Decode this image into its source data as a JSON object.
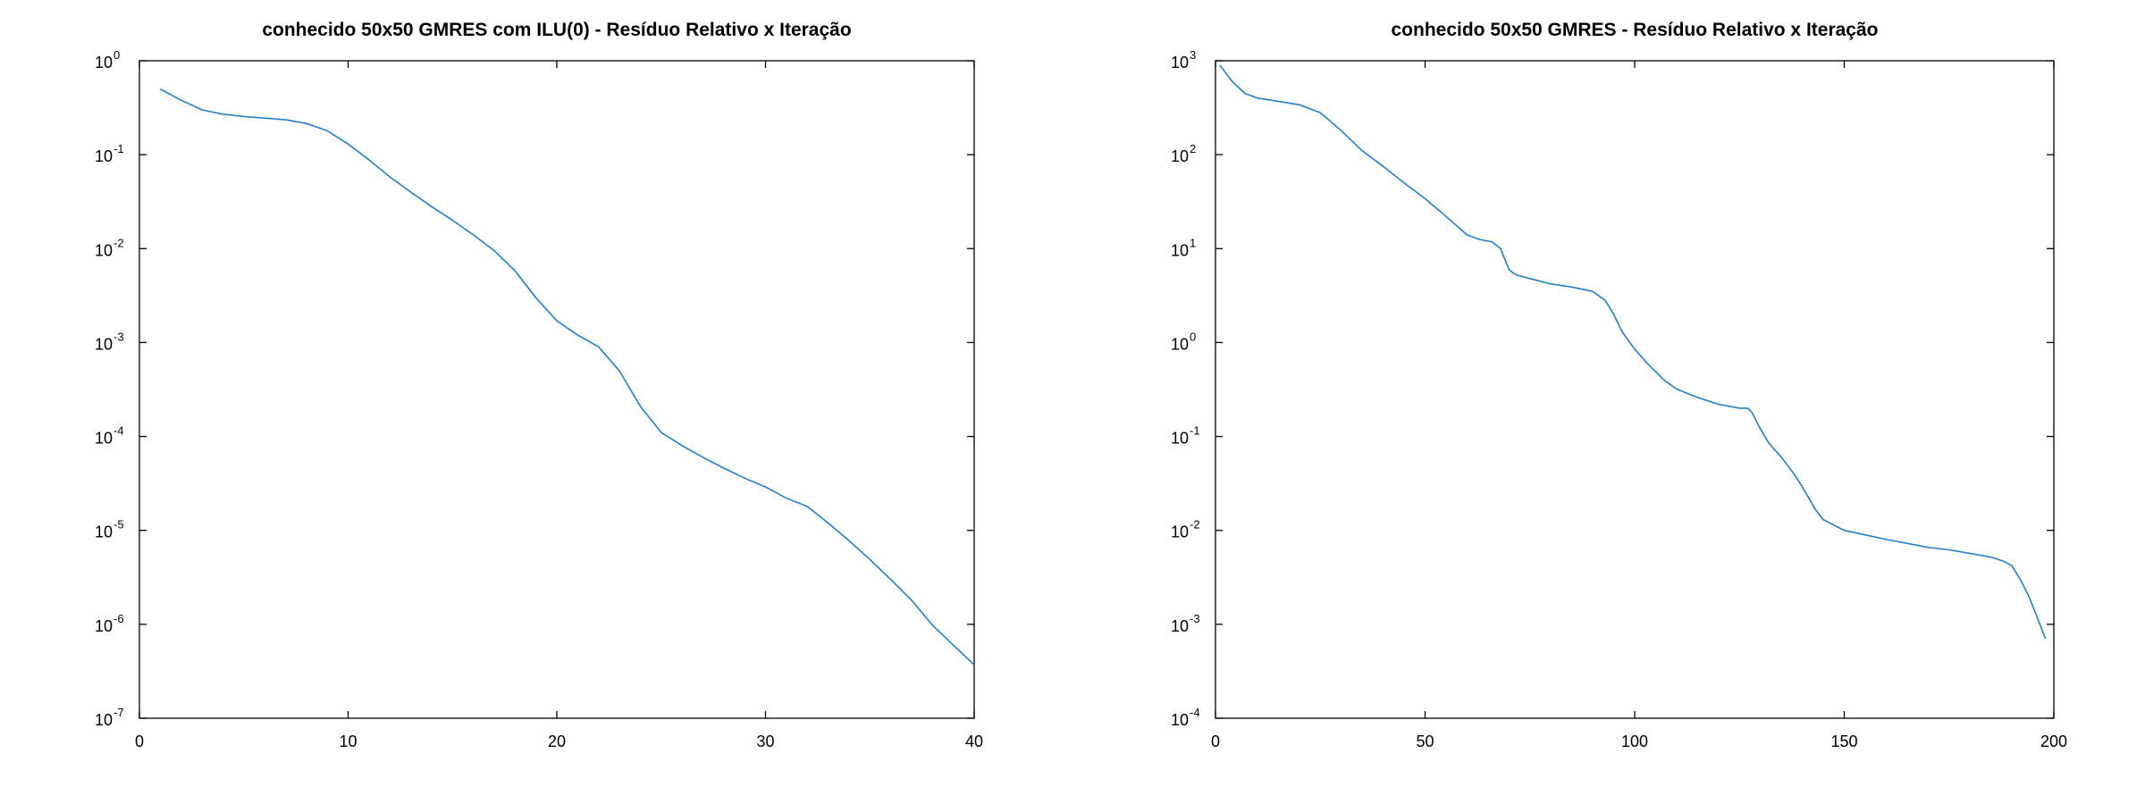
{
  "chart_data": [
    {
      "type": "line",
      "title": "conhecido 50x50 GMRES com ILU(0) - Resíduo Relativo x Iteração",
      "xlabel": "",
      "ylabel": "",
      "x_scale": "linear",
      "y_scale": "log",
      "xlim": [
        0,
        40
      ],
      "ylim": [
        1e-07,
        1
      ],
      "x_ticks": [
        0,
        10,
        20,
        30,
        40
      ],
      "y_ticks": [
        {
          "value": 1,
          "base": "10",
          "exp": "0"
        },
        {
          "value": 0.1,
          "base": "10",
          "exp": "-1"
        },
        {
          "value": 0.01,
          "base": "10",
          "exp": "-2"
        },
        {
          "value": 0.001,
          "base": "10",
          "exp": "-3"
        },
        {
          "value": 0.0001,
          "base": "10",
          "exp": "-4"
        },
        {
          "value": 1e-05,
          "base": "10",
          "exp": "-5"
        },
        {
          "value": 1e-06,
          "base": "10",
          "exp": "-6"
        },
        {
          "value": 1e-07,
          "base": "10",
          "exp": "-7"
        }
      ],
      "grid": false,
      "series": [
        {
          "color": "#1f7fcf",
          "x": [
            1,
            2,
            3,
            4,
            5,
            6,
            7,
            8,
            9,
            10,
            11,
            12,
            13,
            14,
            15,
            16,
            17,
            18,
            19,
            20,
            21,
            22,
            23,
            24,
            25,
            26,
            27,
            28,
            29,
            30,
            31,
            32,
            33,
            34,
            35,
            36,
            37,
            38,
            39,
            40
          ],
          "y": [
            0.5,
            0.38,
            0.3,
            0.27,
            0.255,
            0.245,
            0.235,
            0.215,
            0.18,
            0.13,
            0.088,
            0.058,
            0.04,
            0.028,
            0.02,
            0.014,
            0.0095,
            0.0058,
            0.003,
            0.0017,
            0.0012,
            0.0009,
            0.0005,
            0.00021,
            0.00011,
            8e-05,
            6e-05,
            4.6e-05,
            3.6e-05,
            2.9e-05,
            2.2e-05,
            1.8e-05,
            1.2e-05,
            7.8e-06,
            4.9e-06,
            3e-06,
            1.8e-06,
            9.8e-07,
            6e-07,
            3.7e-07
          ]
        }
      ]
    },
    {
      "type": "line",
      "title": "conhecido 50x50 GMRES - Resíduo Relativo x Iteração",
      "xlabel": "",
      "ylabel": "",
      "x_scale": "linear",
      "y_scale": "log",
      "xlim": [
        0,
        200
      ],
      "ylim": [
        0.0001,
        1000
      ],
      "x_ticks": [
        0,
        50,
        100,
        150,
        200
      ],
      "y_ticks": [
        {
          "value": 1000,
          "base": "10",
          "exp": "3"
        },
        {
          "value": 100,
          "base": "10",
          "exp": "2"
        },
        {
          "value": 10,
          "base": "10",
          "exp": "1"
        },
        {
          "value": 1,
          "base": "10",
          "exp": "0"
        },
        {
          "value": 0.1,
          "base": "10",
          "exp": "-1"
        },
        {
          "value": 0.01,
          "base": "10",
          "exp": "-2"
        },
        {
          "value": 0.001,
          "base": "10",
          "exp": "-3"
        },
        {
          "value": 0.0001,
          "base": "10",
          "exp": "-4"
        }
      ],
      "grid": false,
      "series": [
        {
          "color": "#1f7fcf",
          "x": [
            1,
            4,
            7,
            10,
            15,
            20,
            25,
            30,
            35,
            40,
            45,
            50,
            55,
            60,
            63,
            66,
            68,
            70,
            71,
            72,
            75,
            80,
            85,
            90,
            93,
            95,
            97,
            100,
            103,
            107,
            110,
            115,
            120,
            125,
            127,
            128,
            130,
            132,
            135,
            138,
            140,
            143,
            145,
            150,
            160,
            170,
            175,
            180,
            185,
            188,
            190,
            192,
            194,
            196,
            198
          ],
          "y": [
            900,
            600,
            450,
            400,
            370,
            340,
            280,
            180,
            110,
            75,
            50,
            34,
            22,
            14,
            12.5,
            11.8,
            10,
            6,
            5.5,
            5.2,
            4.8,
            4.2,
            3.9,
            3.5,
            2.8,
            2,
            1.3,
            0.85,
            0.6,
            0.4,
            0.32,
            0.26,
            0.22,
            0.2,
            0.2,
            0.18,
            0.12,
            0.085,
            0.06,
            0.04,
            0.029,
            0.017,
            0.013,
            0.01,
            0.008,
            0.0066,
            0.0062,
            0.0057,
            0.0052,
            0.0047,
            0.0042,
            0.003,
            0.002,
            0.0012,
            0.0007
          ]
        }
      ]
    }
  ]
}
